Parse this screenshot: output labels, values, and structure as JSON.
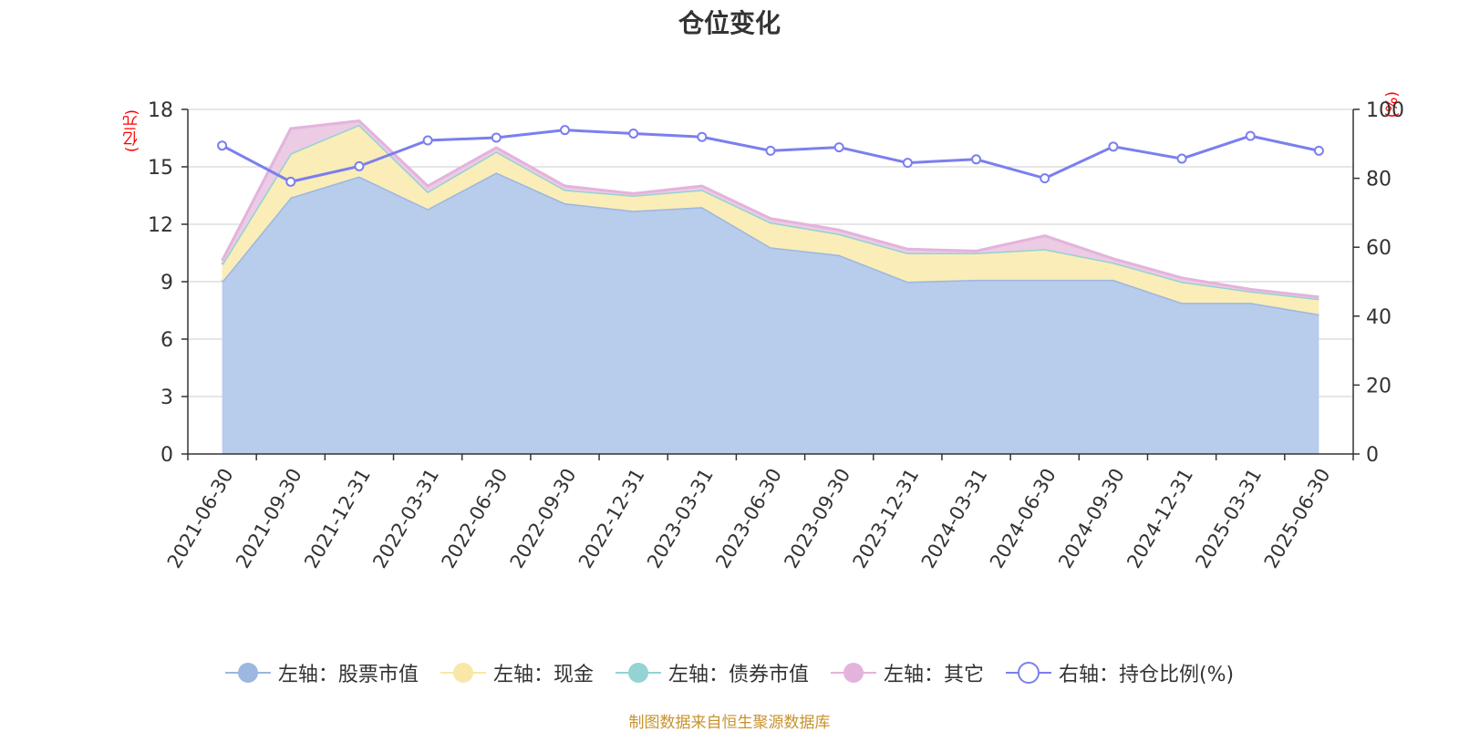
{
  "chart_data": {
    "type": "area",
    "title": "仓位变化",
    "left_axis": {
      "unit": "(亿元)",
      "min": 0,
      "max": 18,
      "ticks": [
        0,
        3,
        6,
        9,
        12,
        15,
        18
      ]
    },
    "right_axis": {
      "unit": "(%)",
      "min": 0,
      "max": 100,
      "ticks": [
        0,
        20,
        40,
        60,
        80,
        100
      ]
    },
    "categories": [
      "2021-06-30",
      "2021-09-30",
      "2021-12-31",
      "2022-03-31",
      "2022-06-30",
      "2022-09-30",
      "2022-12-31",
      "2023-03-31",
      "2023-06-30",
      "2023-09-30",
      "2023-12-31",
      "2024-03-31",
      "2024-06-30",
      "2024-09-30",
      "2024-12-31",
      "2025-03-31",
      "2025-06-30"
    ],
    "series": [
      {
        "name": "左轴：股票市值",
        "axis": "left",
        "kind": "stacked-area",
        "color": "#9cb7e0",
        "fill": "#b8cceb",
        "values": [
          9.0,
          13.4,
          14.5,
          12.8,
          14.7,
          13.1,
          12.7,
          12.9,
          10.8,
          10.4,
          9.0,
          9.1,
          9.1,
          9.1,
          7.9,
          7.9,
          7.3
        ]
      },
      {
        "name": "左轴：现金",
        "axis": "left",
        "kind": "stacked-area",
        "color": "#f7e8a7",
        "fill": "#faedb8",
        "values": [
          0.9,
          2.3,
          2.7,
          0.9,
          1.1,
          0.7,
          0.8,
          0.9,
          1.3,
          1.1,
          1.5,
          1.4,
          1.6,
          0.9,
          1.1,
          0.6,
          0.8
        ]
      },
      {
        "name": "左轴：债券市值",
        "axis": "left",
        "kind": "stacked-area",
        "color": "#93d3d3",
        "fill": "#a8dcdc",
        "values": [
          0,
          0,
          0,
          0,
          0,
          0,
          0,
          0,
          0,
          0,
          0,
          0,
          0,
          0,
          0,
          0,
          0
        ]
      },
      {
        "name": "左轴：其它",
        "axis": "left",
        "kind": "stacked-area",
        "color": "#e4b3dc",
        "fill": "#eccbe5",
        "values": [
          0.2,
          1.3,
          0.2,
          0.3,
          0.2,
          0.2,
          0.1,
          0.2,
          0.2,
          0.2,
          0.2,
          0.1,
          0.7,
          0.2,
          0.2,
          0.1,
          0.1
        ]
      },
      {
        "name": "右轴：持仓比例(%)",
        "axis": "right",
        "kind": "line",
        "color": "#7b7fee",
        "values": [
          89.5,
          79,
          83.5,
          91,
          91.8,
          94,
          93,
          92,
          88,
          89,
          84.5,
          85.5,
          80,
          89.2,
          85.7,
          92.3,
          88
        ]
      }
    ]
  },
  "source": "制图数据来自恒生聚源数据库"
}
